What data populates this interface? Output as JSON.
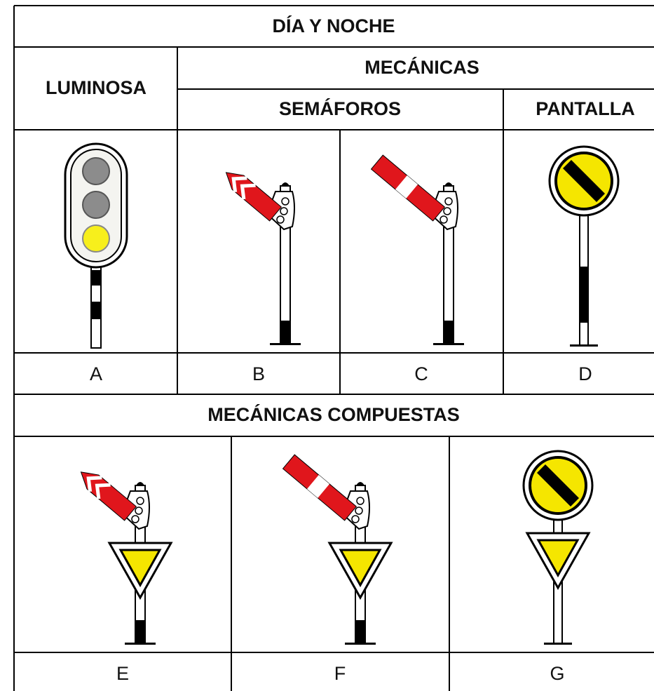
{
  "header": {
    "title": "DÍA Y NOCHE"
  },
  "groups": {
    "luminosa": "LUMINOSA",
    "mecanicas": "MECÁNICAS",
    "semaforos": "SEMÁFOROS",
    "pantalla": "PANTALLA",
    "compuestas": "MECÁNICAS COMPUESTAS"
  },
  "signals": {
    "row1": [
      "A",
      "B",
      "C",
      "D"
    ],
    "row2": [
      "E",
      "F",
      "G"
    ]
  }
}
